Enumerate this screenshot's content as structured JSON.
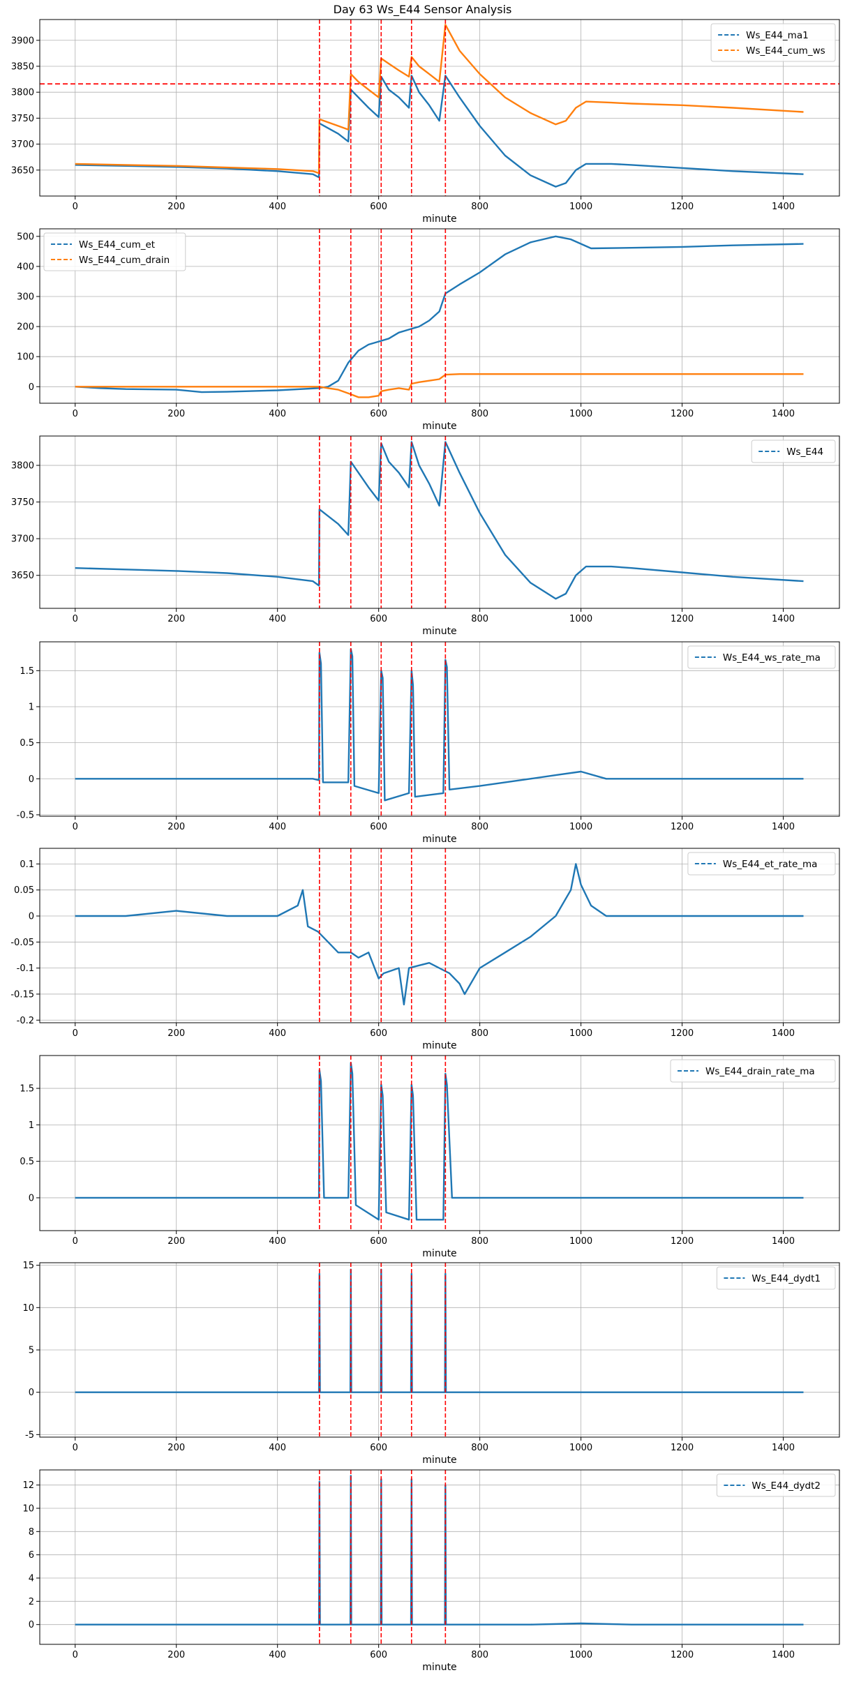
{
  "title": "Day 63 Ws_E44 Sensor Analysis",
  "colors": {
    "blue": "#1f77b4",
    "orange": "#ff7f0e",
    "event": "#ff0000",
    "grid": "#b0b0b0"
  },
  "event_minutes": [
    483,
    545,
    605,
    665,
    732
  ],
  "chart_data": [
    {
      "type": "line",
      "xlabel": "minute",
      "xlim": [
        -70,
        1511
      ],
      "ylim": [
        3600,
        3940
      ],
      "xticks": [
        0,
        200,
        400,
        600,
        800,
        1000,
        1200,
        1400
      ],
      "yticks": [
        3650,
        3700,
        3750,
        3800,
        3850,
        3900
      ],
      "hline": 3816,
      "legend_pos": "top-right",
      "series": [
        {
          "name": "Ws_E44_ma1",
          "color": "#1f77b4",
          "x": [
            0,
            100,
            200,
            300,
            400,
            470,
            482,
            483,
            520,
            540,
            545,
            560,
            580,
            600,
            605,
            620,
            640,
            660,
            665,
            680,
            700,
            720,
            732,
            760,
            800,
            850,
            900,
            950,
            970,
            990,
            1010,
            1060,
            1100,
            1200,
            1300,
            1440
          ],
          "y": [
            3660,
            3658,
            3656,
            3653,
            3648,
            3642,
            3636,
            3740,
            3720,
            3705,
            3805,
            3790,
            3770,
            3752,
            3830,
            3805,
            3790,
            3770,
            3832,
            3800,
            3775,
            3745,
            3832,
            3790,
            3735,
            3678,
            3640,
            3618,
            3625,
            3650,
            3662,
            3662,
            3660,
            3654,
            3648,
            3642
          ]
        },
        {
          "name": "Ws_E44_cum_ws",
          "color": "#ff7f0e",
          "x": [
            0,
            100,
            200,
            300,
            400,
            470,
            482,
            483,
            520,
            540,
            545,
            560,
            580,
            600,
            605,
            620,
            640,
            660,
            665,
            680,
            700,
            720,
            732,
            760,
            800,
            850,
            900,
            950,
            970,
            990,
            1010,
            1060,
            1100,
            1200,
            1300,
            1440
          ],
          "y": [
            3662,
            3660,
            3658,
            3655,
            3652,
            3648,
            3644,
            3748,
            3735,
            3728,
            3835,
            3820,
            3805,
            3790,
            3865,
            3855,
            3842,
            3830,
            3868,
            3850,
            3835,
            3820,
            3930,
            3880,
            3835,
            3790,
            3760,
            3738,
            3745,
            3770,
            3782,
            3780,
            3778,
            3775,
            3770,
            3762
          ]
        }
      ]
    },
    {
      "type": "line",
      "xlabel": "minute",
      "xlim": [
        -70,
        1511
      ],
      "ylim": [
        -55,
        525
      ],
      "xticks": [
        0,
        200,
        400,
        600,
        800,
        1000,
        1200,
        1400
      ],
      "yticks": [
        0,
        100,
        200,
        300,
        400,
        500
      ],
      "legend_pos": "top-left",
      "series": [
        {
          "name": "Ws_E44_cum_et",
          "color": "#1f77b4",
          "x": [
            0,
            50,
            100,
            200,
            250,
            300,
            400,
            480,
            500,
            520,
            540,
            560,
            580,
            600,
            620,
            640,
            660,
            680,
            700,
            720,
            732,
            760,
            800,
            850,
            900,
            950,
            980,
            1020,
            1100,
            1200,
            1300,
            1440
          ],
          "y": [
            0,
            -5,
            -8,
            -10,
            -18,
            -17,
            -12,
            -5,
            0,
            20,
            80,
            120,
            140,
            150,
            160,
            180,
            190,
            200,
            220,
            250,
            310,
            340,
            380,
            440,
            480,
            500,
            490,
            460,
            462,
            465,
            470,
            475
          ]
        },
        {
          "name": "Ws_E44_cum_drain",
          "color": "#ff7f0e",
          "x": [
            0,
            100,
            200,
            300,
            400,
            470,
            483,
            500,
            520,
            545,
            560,
            580,
            600,
            605,
            620,
            640,
            660,
            665,
            680,
            700,
            720,
            732,
            760,
            800,
            900,
            1000,
            1100,
            1200,
            1300,
            1440
          ],
          "y": [
            0,
            0,
            0,
            0,
            0,
            0,
            0,
            -5,
            -10,
            -25,
            -35,
            -35,
            -30,
            -15,
            -10,
            -5,
            -10,
            10,
            15,
            20,
            25,
            40,
            42,
            42,
            42,
            42,
            42,
            42,
            42,
            42
          ]
        }
      ]
    },
    {
      "type": "line",
      "xlabel": "minute",
      "xlim": [
        -70,
        1511
      ],
      "ylim": [
        3605,
        3840
      ],
      "xticks": [
        0,
        200,
        400,
        600,
        800,
        1000,
        1200,
        1400
      ],
      "yticks": [
        3650,
        3700,
        3750,
        3800
      ],
      "legend_pos": "top-right",
      "series": [
        {
          "name": "Ws_E44",
          "color": "#1f77b4",
          "x": [
            0,
            100,
            200,
            300,
            400,
            470,
            482,
            483,
            520,
            540,
            545,
            560,
            580,
            600,
            605,
            620,
            640,
            660,
            665,
            680,
            700,
            720,
            732,
            760,
            800,
            850,
            900,
            950,
            970,
            990,
            1010,
            1060,
            1100,
            1200,
            1300,
            1440
          ],
          "y": [
            3660,
            3658,
            3656,
            3653,
            3648,
            3642,
            3636,
            3740,
            3720,
            3705,
            3805,
            3790,
            3770,
            3752,
            3830,
            3805,
            3790,
            3770,
            3832,
            3800,
            3775,
            3745,
            3832,
            3790,
            3735,
            3678,
            3640,
            3618,
            3625,
            3650,
            3662,
            3662,
            3660,
            3654,
            3648,
            3642
          ]
        }
      ]
    },
    {
      "type": "line",
      "xlabel": "minute",
      "xlim": [
        -70,
        1511
      ],
      "ylim": [
        -0.52,
        1.9
      ],
      "xticks": [
        0,
        200,
        400,
        600,
        800,
        1000,
        1200,
        1400
      ],
      "yticks": [
        -0.5,
        0.0,
        0.5,
        1.0,
        1.5
      ],
      "legend_pos": "top-right",
      "series": [
        {
          "name": "Ws_E44_ws_rate_ma",
          "color": "#1f77b4",
          "x": [
            0,
            100,
            200,
            300,
            400,
            470,
            482,
            483,
            486,
            490,
            540,
            545,
            548,
            552,
            600,
            605,
            608,
            612,
            660,
            665,
            668,
            672,
            728,
            732,
            735,
            740,
            800,
            900,
            950,
            1000,
            1050,
            1100,
            1200,
            1300,
            1440
          ],
          "y": [
            0,
            0,
            0,
            0,
            0,
            0,
            -0.02,
            1.75,
            1.6,
            -0.05,
            -0.05,
            1.8,
            1.7,
            -0.1,
            -0.2,
            1.5,
            1.4,
            -0.3,
            -0.2,
            1.5,
            1.3,
            -0.25,
            -0.2,
            1.65,
            1.55,
            -0.15,
            -0.1,
            0,
            0.05,
            0.1,
            0,
            0,
            0,
            0,
            0
          ]
        }
      ]
    },
    {
      "type": "line",
      "xlabel": "minute",
      "xlim": [
        -70,
        1511
      ],
      "ylim": [
        -0.205,
        0.13
      ],
      "xticks": [
        0,
        200,
        400,
        600,
        800,
        1000,
        1200,
        1400
      ],
      "yticks": [
        -0.2,
        -0.15,
        -0.1,
        -0.05,
        0.0,
        0.05,
        0.1
      ],
      "legend_pos": "top-right",
      "series": [
        {
          "name": "Ws_E44_et_rate_ma",
          "color": "#1f77b4",
          "x": [
            0,
            100,
            200,
            300,
            400,
            440,
            450,
            460,
            480,
            500,
            520,
            545,
            560,
            580,
            600,
            610,
            640,
            650,
            660,
            700,
            740,
            760,
            770,
            800,
            850,
            900,
            950,
            980,
            990,
            1000,
            1020,
            1050,
            1100,
            1200,
            1300,
            1440
          ],
          "y": [
            0,
            0,
            0.01,
            0,
            0,
            0.02,
            0.05,
            -0.02,
            -0.03,
            -0.05,
            -0.07,
            -0.07,
            -0.08,
            -0.07,
            -0.12,
            -0.11,
            -0.1,
            -0.17,
            -0.1,
            -0.09,
            -0.11,
            -0.13,
            -0.15,
            -0.1,
            -0.07,
            -0.04,
            0.0,
            0.05,
            0.1,
            0.06,
            0.02,
            0,
            0,
            0,
            0,
            0
          ]
        }
      ]
    },
    {
      "type": "line",
      "xlabel": "minute",
      "xlim": [
        -70,
        1511
      ],
      "ylim": [
        -0.45,
        1.95
      ],
      "xticks": [
        0,
        200,
        400,
        600,
        800,
        1000,
        1200,
        1400
      ],
      "yticks": [
        0.0,
        0.5,
        1.0,
        1.5
      ],
      "legend_pos": "top-right",
      "series": [
        {
          "name": "Ws_E44_drain_rate_ma",
          "color": "#1f77b4",
          "x": [
            0,
            100,
            200,
            300,
            400,
            470,
            482,
            483,
            486,
            492,
            540,
            545,
            548,
            555,
            600,
            605,
            608,
            615,
            660,
            665,
            668,
            675,
            728,
            732,
            735,
            745,
            800,
            900,
            1000,
            1100,
            1200,
            1300,
            1440
          ],
          "y": [
            0,
            0,
            0,
            0,
            0,
            0,
            0,
            1.75,
            1.6,
            0,
            0,
            1.85,
            1.7,
            -0.1,
            -0.3,
            1.55,
            1.4,
            -0.2,
            -0.3,
            1.55,
            1.4,
            -0.3,
            -0.3,
            1.7,
            1.55,
            0,
            0,
            0,
            0,
            0,
            0,
            0,
            0
          ]
        }
      ]
    },
    {
      "type": "line",
      "xlabel": "minute",
      "xlim": [
        -70,
        1511
      ],
      "ylim": [
        -5.3,
        15.3
      ],
      "xticks": [
        0,
        200,
        400,
        600,
        800,
        1000,
        1200,
        1400
      ],
      "yticks": [
        -5,
        0,
        5,
        10,
        15
      ],
      "legend_pos": "top-right",
      "series": [
        {
          "name": "Ws_E44_dydt1",
          "color": "#1f77b4",
          "x": [
            0,
            100,
            200,
            300,
            400,
            482,
            483,
            484,
            544,
            545,
            546,
            604,
            605,
            606,
            664,
            665,
            666,
            731,
            732,
            733,
            800,
            900,
            1000,
            1100,
            1200,
            1300,
            1440
          ],
          "y": [
            0,
            0,
            0,
            0,
            0,
            0,
            14,
            0,
            0,
            14.5,
            0,
            0,
            14.5,
            0,
            0,
            14,
            0,
            0,
            14,
            0,
            0,
            0,
            0,
            0,
            0,
            0,
            0
          ]
        }
      ]
    },
    {
      "type": "line",
      "xlabel": "minute",
      "xlim": [
        -70,
        1511
      ],
      "ylim": [
        -1.7,
        13.3
      ],
      "xticks": [
        0,
        200,
        400,
        600,
        800,
        1000,
        1200,
        1400
      ],
      "yticks": [
        0,
        2,
        4,
        6,
        8,
        10,
        12
      ],
      "legend_pos": "top-right",
      "series": [
        {
          "name": "Ws_E44_dydt2",
          "color": "#1f77b4",
          "x": [
            0,
            100,
            200,
            300,
            400,
            482,
            483,
            484,
            544,
            545,
            546,
            604,
            605,
            606,
            664,
            665,
            666,
            731,
            732,
            733,
            800,
            900,
            1000,
            1100,
            1200,
            1300,
            1440
          ],
          "y": [
            0,
            0,
            0,
            0,
            0,
            0,
            12.3,
            0,
            0,
            12.8,
            0,
            0,
            12.5,
            0,
            0,
            12.5,
            0,
            0,
            12,
            0,
            0,
            0,
            0.1,
            0,
            0,
            0,
            0
          ]
        }
      ]
    }
  ]
}
